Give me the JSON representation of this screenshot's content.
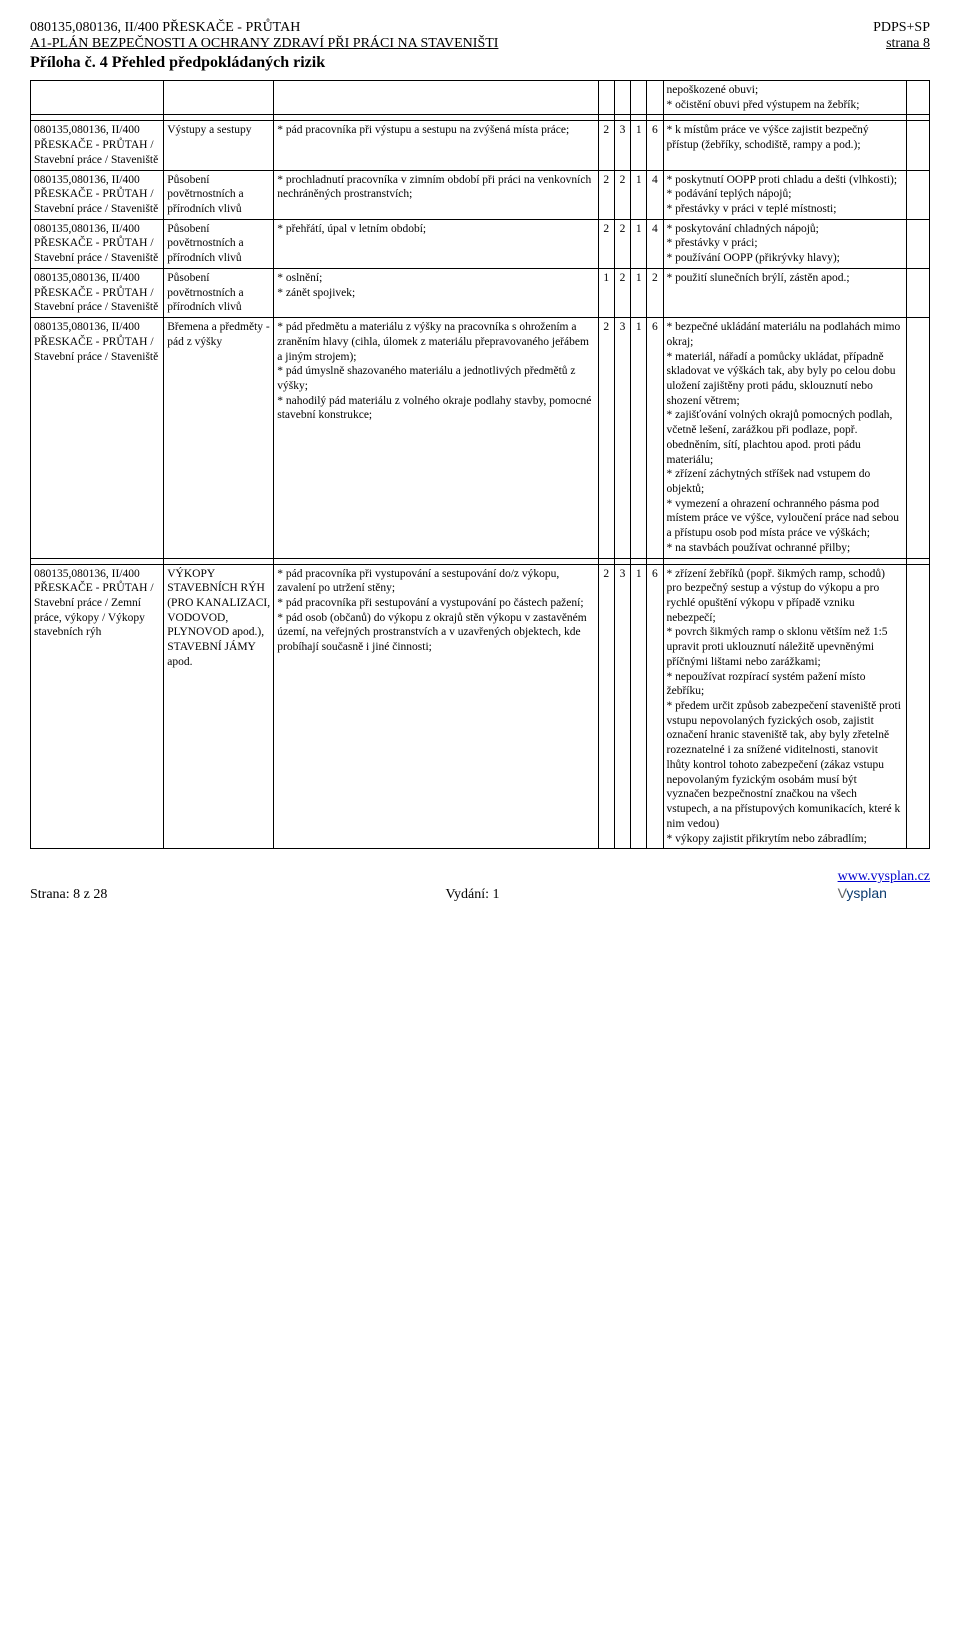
{
  "header": {
    "left1": "080135,080136, II/400 PŘESKAČE - PRŮTAH",
    "right1": "PDPS+SP",
    "left2": "A1-PLÁN BEZPEČNOSTI A OCHRANY ZDRAVÍ PŘI PRÁCI NA STAVENIŠTI",
    "right2": "strana  8",
    "title": "Příloha č. 4 Přehled předpokládaných rizik"
  },
  "footer": {
    "left": "Strana:  8 z 28",
    "center": "Vydání: 1",
    "link": "www.vysplan.cz"
  },
  "rows": [
    {
      "c1": "",
      "c2": "",
      "c3": "",
      "nums": [
        "",
        "",
        "",
        ""
      ],
      "c8": "nepoškozené obuvi;\n* očistění obuvi před výstupem na žebřík;",
      "c9": ""
    },
    {
      "spacer": true
    },
    {
      "c1": "080135,080136, II/400 PŘESKAČE - PRŮTAH / Stavební práce / Staveniště",
      "c2": "Výstupy a sestupy",
      "c3": "* pád pracovníka při výstupu a sestupu na zvýšená místa práce;",
      "nums": [
        "2",
        "3",
        "1",
        "6"
      ],
      "c8": "* k místům práce ve výšce zajistit bezpečný přístup (žebříky, schodiště, rampy a pod.);",
      "c9": ""
    },
    {
      "c1": "080135,080136, II/400 PŘESKAČE - PRŮTAH / Stavební práce / Staveniště",
      "c2": "Působení povětrnostních a přírodních vlivů",
      "c3": "* prochladnutí pracovníka v zimním období při práci na venkovních nechráněných prostranstvích;",
      "nums": [
        "2",
        "2",
        "1",
        "4"
      ],
      "c8": "* poskytnutí OOPP proti chladu a dešti (vlhkosti);\n* podávání teplých nápojů;\n* přestávky v práci v teplé místnosti;",
      "c9": ""
    },
    {
      "c1": "080135,080136, II/400 PŘESKAČE - PRŮTAH / Stavební práce / Staveniště",
      "c2": "Působení povětrnostních a přírodních vlivů",
      "c3": "* přehřátí, úpal v letním období;",
      "nums": [
        "2",
        "2",
        "1",
        "4"
      ],
      "c8": "* poskytování chladných nápojů;\n* přestávky v práci;\n* používání OOPP (přikrývky hlavy);",
      "c9": ""
    },
    {
      "c1": "080135,080136, II/400 PŘESKAČE - PRŮTAH / Stavební práce / Staveniště",
      "c2": "Působení povětrnostních a přírodních vlivů",
      "c3": "* oslnění;\n* zánět spojivek;",
      "nums": [
        "1",
        "2",
        "1",
        "2"
      ],
      "c8": "* použití slunečních brýlí, zástěn apod.;",
      "c9": ""
    },
    {
      "c1": "080135,080136, II/400 PŘESKAČE - PRŮTAH / Stavební práce / Staveniště",
      "c2": "Břemena a předměty - pád z výšky",
      "c3": "* pád předmětu a materiálu z výšky na pracovníka s ohrožením a zraněním hlavy (cihla, úlomek z materiálu přepravovaného jeřábem a jiným strojem);\n* pád úmyslně shazovaného materiálu a jednotlivých předmětů z výšky;\n* nahodilý pád materiálu z volného okraje podlahy stavby, pomocné stavební konstrukce;",
      "nums": [
        "2",
        "3",
        "1",
        "6"
      ],
      "c8": "* bezpečné ukládání materiálu na podlahách mimo okraj;\n* materiál, nářadí a pomůcky ukládat, případně skladovat ve výškách tak, aby byly po celou dobu uložení zajištěny proti pádu, sklouznutí nebo shození větrem;\n* zajišťování volných okrajů pomocných podlah, včetně lešení, zarážkou při podlaze, popř. obedněním, sítí, plachtou apod. proti pádu materiálu;\n* zřízení záchytných stříšek nad vstupem do objektů;\n* vymezení a ohrazení ochranného pásma pod místem práce ve výšce, vyloučení práce nad sebou a přístupu osob pod místa práce ve výškách;\n* na stavbách používat ochranné přilby;",
      "c9": ""
    },
    {
      "spacer": true
    },
    {
      "c1": "080135,080136, II/400 PŘESKAČE - PRŮTAH / Stavební práce / Zemní práce, výkopy / Výkopy stavebních rýh",
      "c2": "VÝKOPY STAVEBNÍCH RÝH (PRO KANALIZACI, VODOVOD, PLYNOVOD apod.), STAVEBNÍ JÁMY apod.",
      "c3": "* pád pracovníka při vystupování a sestupování do/z výkopu, zavalení po utržení stěny;\n* pád pracovníka při sestupování a vystupování po částech pažení;\n* pád osob (občanů) do výkopu z okrajů stěn výkopu v zastavěném území, na veřejných prostranstvích a v uzavřených objektech, kde probíhají současně i jiné činnosti;",
      "nums": [
        "2",
        "3",
        "1",
        "6"
      ],
      "c8": "* zřízení žebříků (popř. šikmých ramp, schodů) pro bezpečný sestup a výstup do výkopu a pro rychlé opuštění výkopu v případě vzniku nebezpečí;\n* povrch šikmých ramp o sklonu větším než 1:5 upravit proti uklouznutí náležitě upevněnými příčnými lištami nebo zarážkami;\n* nepoužívat rozpírací systém pažení místo žebříku;\n* předem určit způsob zabezpečení staveniště proti vstupu nepovolaných fyzických osob, zajistit označení hranic staveniště tak, aby byly zřetelně rozeznatelné i za snížené viditelnosti, stanovit lhůty kontrol tohoto zabezpečení (zákaz vstupu nepovolaným fyzickým osobám musí být vyznačen bezpečnostní značkou na všech vstupech, a na přístupových komunikacích, které k nim vedou)\n* výkopy zajistit přikrytím nebo zábradlím;",
      "c9": ""
    }
  ]
}
